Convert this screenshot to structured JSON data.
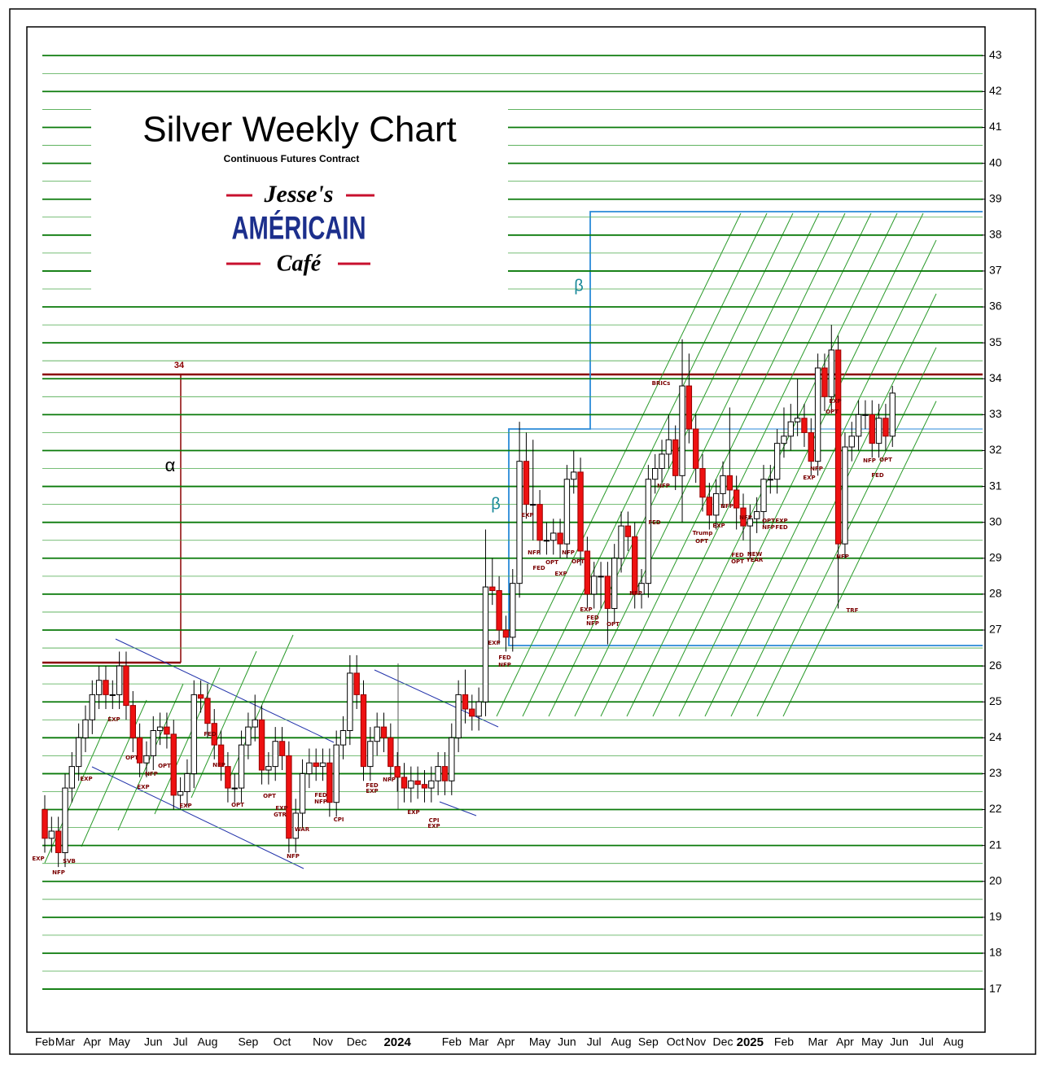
{
  "chart_data": {
    "type": "candlestick",
    "title": "Silver Weekly Chart",
    "subtitle": "Continuous Futures Contract",
    "logo_top": "Jesse's",
    "logo_middle": "AMÉRICAIN",
    "logo_bottom": "Café",
    "level_label": "34",
    "alpha_label": "α",
    "beta_labels": [
      "β",
      "β"
    ],
    "up_color": "#ffffff",
    "down_color": "#ee1111",
    "ylim": [
      15.8,
      43.8
    ],
    "yticks": [
      17,
      18,
      19,
      20,
      21,
      22,
      23,
      24,
      25,
      26,
      27,
      28,
      29,
      30,
      31,
      32,
      33,
      34,
      35,
      36,
      37,
      38,
      39,
      40,
      41,
      42,
      43
    ],
    "grid": true,
    "categories": [
      "Feb",
      null,
      null,
      "Mar",
      null,
      null,
      null,
      "Apr",
      null,
      null,
      null,
      "May",
      null,
      null,
      null,
      null,
      "Jun",
      null,
      null,
      null,
      "Jul",
      null,
      null,
      null,
      "Aug",
      null,
      null,
      null,
      null,
      null,
      "Sep",
      null,
      null,
      null,
      null,
      "Oct",
      null,
      null,
      null,
      null,
      null,
      "Nov",
      null,
      null,
      null,
      null,
      "Dec",
      null,
      null,
      null,
      null,
      null,
      "2024",
      null,
      null,
      null,
      null,
      null,
      null,
      null,
      "Feb",
      null,
      null,
      null,
      "Mar",
      null,
      null,
      null,
      "Apr",
      null,
      null,
      null,
      null,
      "May",
      null,
      null,
      null,
      "Jun",
      null,
      null,
      null,
      "Jul",
      null,
      null,
      null,
      "Aug",
      null,
      null,
      null,
      "Sep",
      null,
      null,
      null,
      "Oct",
      null,
      null,
      "Nov",
      null,
      null,
      null,
      "Dec",
      null,
      null,
      null,
      "2025",
      null,
      null,
      null,
      null,
      "Feb",
      null,
      null,
      null,
      null,
      "Mar",
      null,
      null,
      null,
      "Apr",
      null,
      null,
      null,
      "May",
      null,
      null,
      null,
      "Jun",
      null,
      null,
      null,
      "Jul",
      null,
      null,
      null,
      "Aug"
    ],
    "open": [
      22.0,
      21.2,
      21.4,
      20.8,
      22.6,
      23.2,
      24.0,
      24.5,
      25.2,
      25.6,
      25.2,
      25.2,
      26.0,
      24.9,
      24.0,
      23.3,
      23.5,
      24.2,
      24.3,
      24.1,
      22.4,
      22.5,
      23.0,
      25.2,
      25.1,
      24.4,
      23.8,
      23.2,
      22.6,
      22.6,
      23.8,
      24.3,
      24.5,
      23.1,
      23.2,
      23.9,
      23.5,
      21.2,
      21.9,
      23.0,
      23.3,
      23.2,
      23.3,
      22.2,
      23.8,
      24.2,
      25.8,
      25.2,
      23.2,
      23.9,
      24.3,
      24.0,
      23.2,
      22.9,
      22.6,
      22.8,
      22.7,
      22.6,
      22.8,
      23.2,
      22.8,
      24.0,
      25.2,
      24.8,
      24.6,
      25.0,
      28.2,
      28.1,
      27.0,
      26.8,
      28.3,
      31.7,
      30.5,
      30.5,
      29.5,
      29.5,
      29.7,
      29.4,
      31.2,
      31.4,
      29.2,
      28.0,
      28.5,
      28.5,
      27.6,
      29.0,
      29.9,
      29.6,
      28.0,
      28.3,
      31.2,
      31.5,
      31.9,
      32.3,
      31.3,
      33.8,
      32.6,
      31.5,
      30.7,
      30.2,
      30.8,
      31.3,
      30.9,
      30.4,
      29.9,
      30.1,
      30.3,
      31.2,
      31.2,
      32.2,
      32.4,
      32.8,
      32.9,
      32.5,
      31.7,
      34.3,
      33.5,
      34.8,
      29.4,
      32.1,
      32.4,
      33.0,
      33.0,
      32.2,
      32.9,
      32.4,
      null,
      null,
      null,
      null,
      null,
      null,
      null,
      null,
      null
    ],
    "high": [
      22.4,
      21.8,
      21.8,
      23.0,
      23.6,
      24.4,
      24.9,
      25.6,
      26.0,
      26.0,
      25.6,
      26.4,
      26.4,
      25.3,
      24.4,
      23.9,
      24.6,
      24.7,
      24.7,
      24.5,
      22.9,
      23.4,
      25.6,
      25.6,
      25.5,
      24.8,
      24.2,
      23.6,
      23.0,
      24.2,
      24.7,
      25.2,
      24.9,
      23.6,
      24.3,
      24.3,
      23.9,
      22.3,
      23.4,
      23.7,
      23.7,
      23.7,
      23.7,
      24.2,
      24.6,
      26.3,
      26.3,
      25.6,
      24.3,
      24.7,
      24.7,
      24.4,
      23.6,
      23.3,
      23.2,
      23.2,
      23.1,
      23.2,
      23.6,
      23.6,
      24.4,
      25.6,
      25.9,
      25.2,
      25.4,
      29.8,
      29.0,
      28.5,
      27.4,
      28.7,
      32.8,
      32.5,
      32.3,
      30.9,
      30.0,
      30.1,
      30.1,
      31.6,
      32.0,
      31.8,
      29.6,
      28.9,
      28.9,
      28.9,
      29.4,
      30.3,
      30.3,
      30.0,
      28.7,
      31.6,
      31.9,
      32.3,
      33.0,
      32.7,
      35.1,
      34.7,
      33.0,
      31.9,
      31.1,
      31.2,
      31.7,
      33.2,
      31.3,
      30.8,
      30.5,
      30.7,
      31.6,
      31.6,
      32.6,
      33.2,
      33.3,
      34.0,
      33.3,
      32.9,
      34.7,
      34.7,
      35.5,
      35.2,
      32.5,
      32.8,
      33.4,
      33.4,
      33.4,
      33.3,
      33.3,
      33.8,
      null,
      null,
      null,
      null,
      null,
      null,
      null,
      null,
      null
    ],
    "low": [
      20.8,
      20.8,
      20.4,
      20.4,
      22.2,
      22.8,
      23.6,
      24.1,
      24.8,
      24.8,
      24.8,
      24.8,
      24.5,
      23.6,
      22.9,
      22.9,
      23.1,
      23.8,
      23.7,
      22.0,
      22.0,
      22.1,
      22.6,
      24.7,
      24.0,
      23.4,
      22.8,
      22.2,
      22.2,
      22.2,
      23.4,
      23.9,
      22.7,
      22.7,
      22.8,
      23.1,
      20.8,
      20.8,
      21.5,
      22.6,
      22.8,
      22.8,
      21.8,
      21.8,
      23.4,
      23.8,
      24.8,
      22.8,
      22.8,
      23.5,
      23.6,
      22.8,
      22.5,
      22.2,
      22.2,
      22.3,
      22.2,
      22.2,
      22.4,
      22.4,
      22.4,
      23.6,
      24.4,
      24.2,
      24.2,
      24.6,
      27.7,
      26.6,
      26.4,
      26.4,
      27.9,
      30.1,
      29.5,
      29.1,
      29.1,
      29.1,
      29.0,
      29.0,
      30.8,
      28.8,
      27.6,
      27.6,
      27.6,
      26.6,
      27.2,
      28.6,
      29.2,
      27.6,
      27.6,
      27.9,
      30.8,
      31.1,
      31.5,
      30.9,
      30.0,
      32.2,
      31.1,
      30.3,
      29.8,
      29.8,
      30.4,
      30.5,
      29.8,
      29.5,
      29.0,
      29.7,
      29.9,
      30.8,
      30.8,
      31.8,
      32.0,
      32.4,
      32.1,
      31.3,
      31.3,
      33.1,
      33.1,
      27.6,
      29.0,
      31.7,
      32.0,
      32.6,
      31.8,
      31.8,
      32.0,
      32.1,
      null,
      null,
      null,
      null,
      null,
      null,
      null,
      null,
      null
    ],
    "close": [
      21.2,
      21.4,
      20.8,
      22.6,
      23.2,
      24.0,
      24.5,
      25.2,
      25.6,
      25.2,
      25.2,
      26.0,
      24.9,
      24.0,
      23.3,
      23.5,
      24.2,
      24.3,
      24.1,
      22.4,
      22.5,
      23.0,
      25.2,
      25.1,
      24.4,
      23.8,
      23.2,
      22.6,
      22.6,
      23.8,
      24.3,
      24.5,
      23.1,
      23.2,
      23.9,
      23.5,
      21.2,
      21.9,
      23.0,
      23.3,
      23.2,
      23.3,
      22.2,
      23.8,
      24.2,
      25.8,
      25.2,
      23.2,
      23.9,
      24.3,
      24.0,
      23.2,
      22.9,
      22.6,
      22.8,
      22.7,
      22.6,
      22.8,
      23.2,
      22.8,
      24.0,
      25.2,
      24.8,
      24.6,
      25.0,
      28.2,
      28.1,
      27.0,
      26.8,
      28.3,
      31.7,
      30.5,
      30.5,
      29.5,
      29.5,
      29.7,
      29.4,
      31.2,
      31.4,
      29.2,
      28.0,
      28.5,
      28.5,
      27.6,
      29.0,
      29.9,
      29.6,
      28.0,
      28.3,
      31.2,
      31.5,
      31.9,
      32.3,
      31.3,
      33.8,
      32.6,
      31.5,
      30.7,
      30.2,
      30.8,
      31.3,
      30.9,
      30.4,
      29.9,
      30.1,
      30.3,
      31.2,
      31.2,
      32.2,
      32.4,
      32.8,
      32.9,
      32.5,
      31.7,
      34.3,
      33.5,
      34.8,
      29.4,
      32.1,
      32.4,
      33.0,
      33.0,
      32.2,
      32.9,
      32.4,
      33.6,
      null,
      null,
      null,
      null,
      null,
      null,
      null,
      null,
      null
    ],
    "annotations": [
      "EXP",
      "NFP",
      "SVB",
      "EXP",
      "EXP",
      "OPT",
      "EXP",
      "NFP",
      "OPT",
      "EXP",
      "FED",
      "NFP",
      "OPT",
      "OPT",
      "EXP",
      "GTR",
      "WAR",
      "NFP",
      "FED",
      "NFP",
      "CPI",
      "FED",
      "EXP",
      "NFP",
      "EXP",
      "CPI",
      "EXP",
      "EXP",
      "FED",
      "NFP",
      "EXP",
      "NFP",
      "FED",
      "OPT",
      "EXP",
      "NFP",
      "OPT",
      "EXP",
      "FED",
      "NFP",
      "OPT",
      "NFP",
      "FED",
      "NFP",
      "BRICs",
      "Trump",
      "OPT",
      "EXP",
      "NFP",
      "FED",
      "OPT",
      "NFP",
      "OPT",
      "NFP",
      "NEW",
      "YEAR",
      "EXP",
      "FED",
      "EXP",
      "NFP",
      "OPT",
      "EXP",
      "NFP",
      "TRF",
      "NFP",
      "OPT",
      "FED"
    ]
  }
}
